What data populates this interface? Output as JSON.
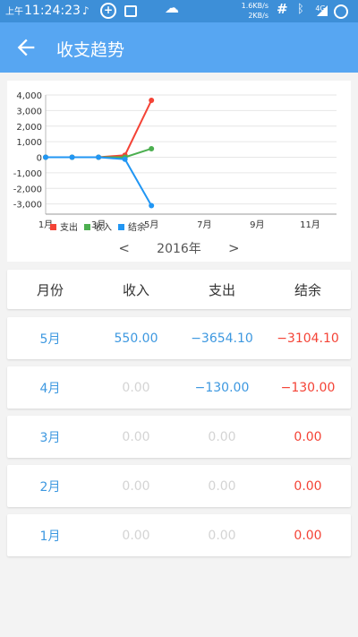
{
  "status_bar": {
    "am_pm": "上午",
    "time": "11:24:23",
    "net_up": "1.6KB/s",
    "net_down": "2KB/s",
    "signal_label": "4G",
    "icons": [
      "music-note-icon",
      "plus-circle-icon",
      "image-icon",
      "weather-icon",
      "hash-icon",
      "bluetooth-icon",
      "signal-icon",
      "battery-icon"
    ]
  },
  "app_bar": {
    "title": "收支趋势",
    "back_icon": "arrow-left-icon"
  },
  "colors": {
    "accent": "#57a6f2",
    "status": "#3d8fd8",
    "expense": "#f44336",
    "income": "#4caf50",
    "balance": "#2196f3"
  },
  "chart_data": {
    "type": "line",
    "x": [
      "1月",
      "2月",
      "3月",
      "4月",
      "5月"
    ],
    "x_ticks": [
      "1月",
      "3月",
      "5月",
      "7月",
      "9月",
      "11月"
    ],
    "x_range": [
      1,
      12
    ],
    "y_ticks": [
      "4,000",
      "3,000",
      "2,000",
      "1,000",
      "0",
      "-1,000",
      "-2,000",
      "-3,000"
    ],
    "ylim": [
      -3654.1,
      4000
    ],
    "grid": true,
    "legend_position": "bottom-left",
    "series": [
      {
        "name": "支出",
        "color": "#f44336",
        "values": [
          0,
          0,
          0,
          130,
          3654.1
        ]
      },
      {
        "name": "收入",
        "color": "#4caf50",
        "values": [
          0,
          0,
          0,
          0,
          550
        ]
      },
      {
        "name": "结余",
        "color": "#2196f3",
        "values": [
          0,
          0,
          0,
          -130,
          -3104.1
        ]
      }
    ]
  },
  "year_selector": {
    "prev": "<",
    "year": "2016年",
    "next": ">"
  },
  "table": {
    "headers": [
      "月份",
      "收入",
      "支出",
      "结余"
    ],
    "rows": [
      {
        "month": "5月",
        "income": "550.00",
        "expense": "−3654.10",
        "balance": "−3104.10"
      },
      {
        "month": "4月",
        "income": "0.00",
        "expense": "−130.00",
        "balance": "−130.00"
      },
      {
        "month": "3月",
        "income": "0.00",
        "expense": "0.00",
        "balance": "0.00"
      },
      {
        "month": "2月",
        "income": "0.00",
        "expense": "0.00",
        "balance": "0.00"
      },
      {
        "month": "1月",
        "income": "0.00",
        "expense": "0.00",
        "balance": "0.00"
      }
    ]
  }
}
